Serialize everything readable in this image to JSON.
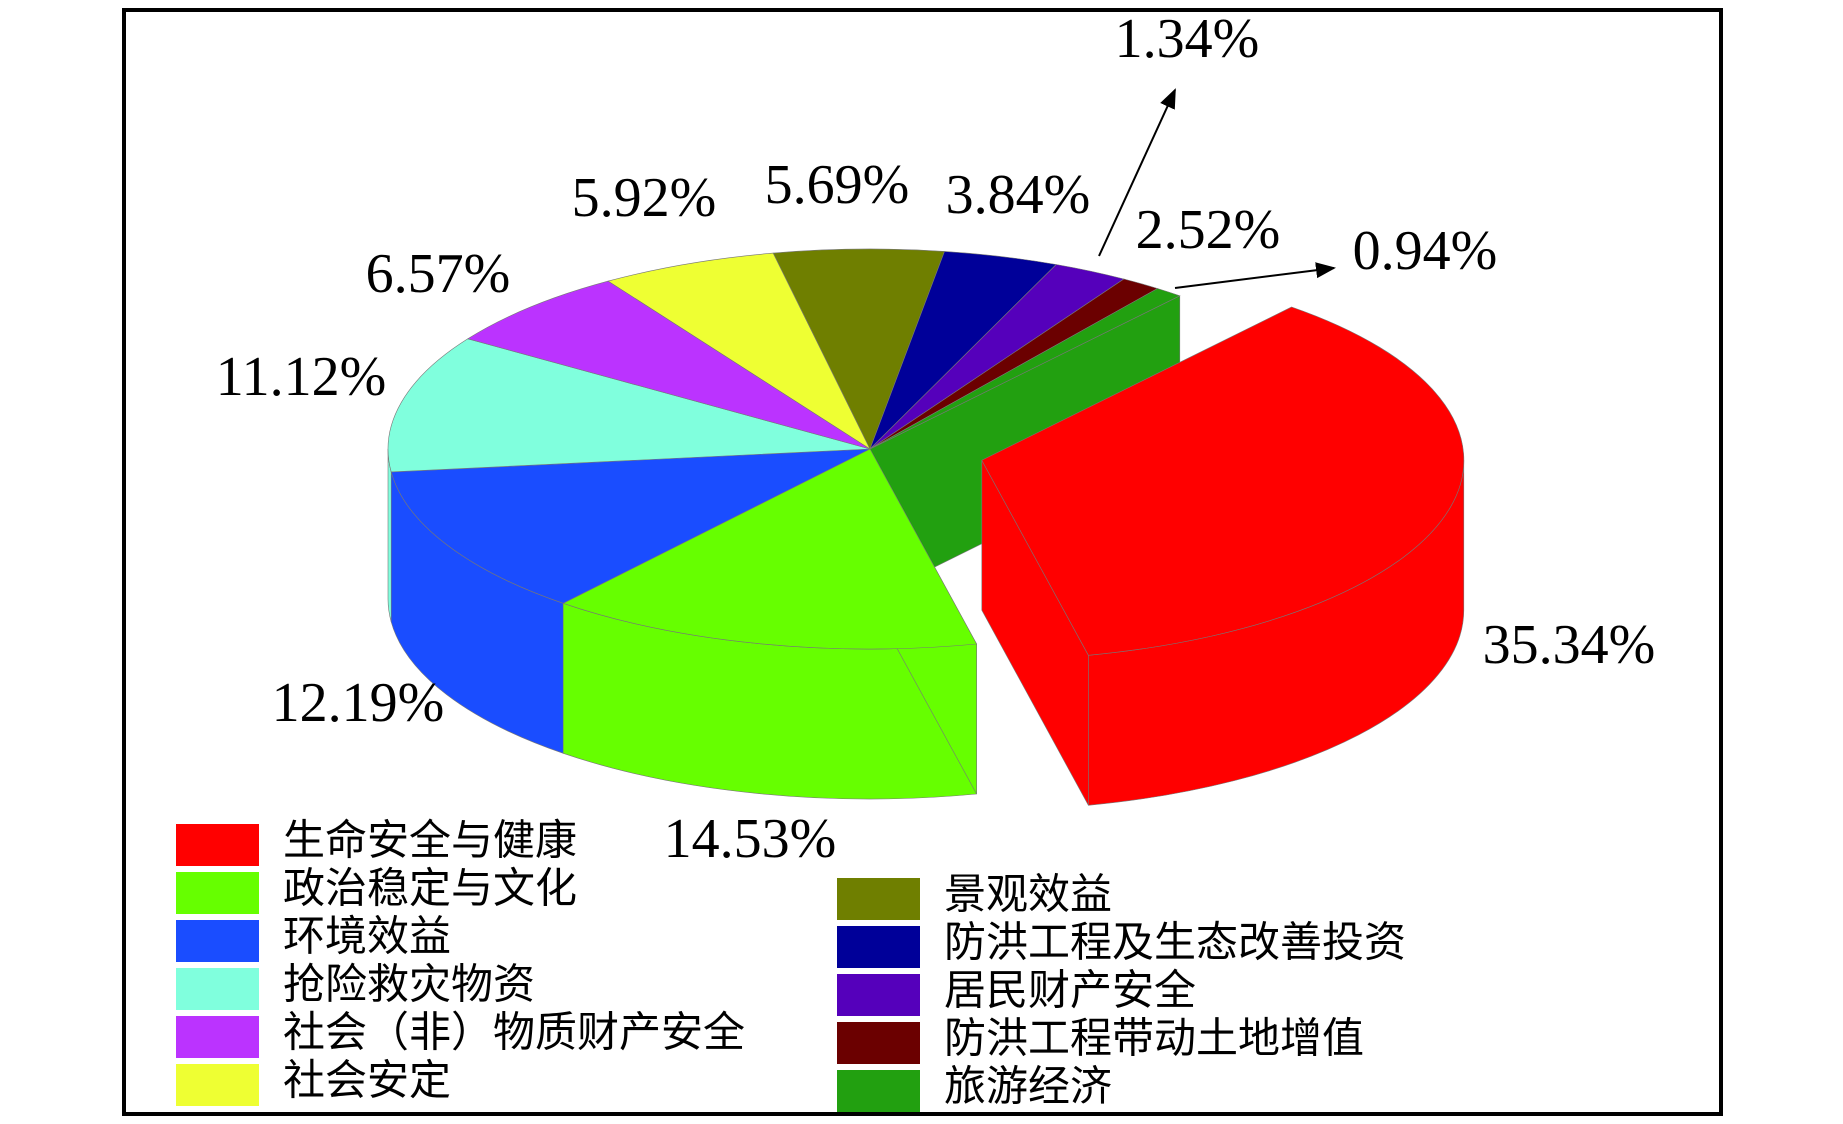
{
  "chart_data": {
    "type": "pie",
    "categories": [
      "生命安全与健康",
      "政治稳定与文化",
      "环境效益",
      "抢险救灾物资",
      "社会（非）物质财产安全",
      "社会安定",
      "景观效益",
      "防洪工程及生态改善投资",
      "居民财产安全",
      "防洪工程带动土地增值",
      "旅游经济"
    ],
    "values": [
      35.34,
      14.53,
      12.19,
      11.12,
      6.57,
      5.92,
      5.69,
      3.84,
      2.52,
      1.34,
      0.94
    ],
    "value_labels": [
      "35.34%",
      "14.53%",
      "12.19%",
      "11.12%",
      "6.57%",
      "5.92%",
      "5.69%",
      "3.84%",
      "2.52%",
      "1.34%",
      "0.94%"
    ],
    "colors": [
      "#ff0000",
      "#66ff00",
      "#1a4dff",
      "#80ffdd",
      "#bb33ff",
      "#eeff33",
      "#6f7f00",
      "#000099",
      "#5500bb",
      "#6b0000",
      "#22a010"
    ],
    "exploded": 0
  }
}
